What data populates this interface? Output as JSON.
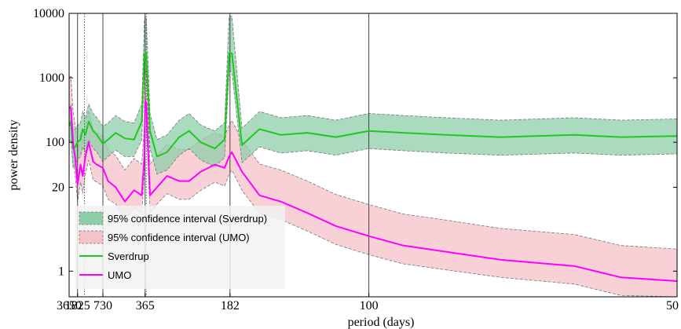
{
  "chart_data": {
    "type": "line",
    "title": "",
    "xlabel": "period (days)",
    "ylabel": "power density",
    "x_scale": "reciprocal",
    "y_scale": "log",
    "xlim": [
      3650,
      50
    ],
    "ylim": [
      0.4,
      10000
    ],
    "x_ticks": [
      3650,
      1825,
      730,
      365,
      182,
      100,
      50
    ],
    "x_tick_labels": [
      "3650",
      "1825",
      "730",
      "365",
      "182",
      "100",
      "50"
    ],
    "y_ticks": [
      1,
      20,
      100,
      1000,
      10000
    ],
    "y_tick_labels": [
      "1",
      "20",
      "100",
      "1000",
      "10000"
    ],
    "vertical_reference_lines": [
      1825,
      730,
      365,
      182,
      100
    ],
    "vertical_dotted_lines": [
      1300,
      360
    ],
    "grid": false,
    "legend_position": "bottom-left",
    "colors": {
      "sverdrup_line": "#1ec81e",
      "sverdrup_band": "#8fcfa8",
      "umo_line": "#ff00ff",
      "umo_band": "#f4c2c8",
      "band_edge": "#777777"
    },
    "series": [
      {
        "name": "Sverdrup",
        "kind": "line",
        "x": [
          3650,
          3000,
          2500,
          2100,
          1825,
          1550,
          1400,
          1250,
          1100,
          950,
          850,
          730,
          650,
          560,
          480,
          420,
          380,
          368,
          365,
          360,
          345,
          320,
          290,
          260,
          240,
          220,
          200,
          188,
          183,
          180,
          170,
          155,
          140,
          125,
          112,
          100,
          90,
          80,
          70,
          60,
          55,
          50
        ],
        "y": [
          180,
          210,
          80,
          85,
          100,
          110,
          160,
          130,
          210,
          150,
          130,
          95,
          110,
          140,
          115,
          110,
          210,
          2200,
          2500,
          2300,
          150,
          60,
          70,
          120,
          150,
          100,
          80,
          110,
          2400,
          2400,
          90,
          160,
          130,
          140,
          120,
          150,
          140,
          130,
          120,
          130,
          120,
          125
        ]
      },
      {
        "name": "UMO",
        "kind": "line",
        "x": [
          3650,
          3000,
          2500,
          2100,
          1825,
          1550,
          1400,
          1250,
          1100,
          950,
          850,
          730,
          650,
          560,
          480,
          420,
          380,
          368,
          365,
          360,
          345,
          320,
          290,
          260,
          240,
          220,
          200,
          188,
          183,
          180,
          170,
          155,
          140,
          125,
          112,
          100,
          90,
          80,
          70,
          60,
          55,
          50
        ],
        "y": [
          340,
          340,
          100,
          55,
          22,
          45,
          30,
          60,
          100,
          50,
          45,
          40,
          25,
          20,
          12,
          18,
          15,
          60,
          450,
          400,
          15,
          20,
          30,
          25,
          25,
          35,
          45,
          40,
          60,
          70,
          35,
          15,
          12,
          8,
          5,
          3.5,
          2.5,
          2,
          1.5,
          1.2,
          0.8,
          0.7
        ]
      },
      {
        "name": "95% confidence interval (Sverdrup)",
        "kind": "band",
        "x": [
          3650,
          3000,
          2500,
          2100,
          1825,
          1550,
          1400,
          1250,
          1100,
          950,
          850,
          730,
          650,
          560,
          480,
          420,
          380,
          368,
          365,
          360,
          345,
          320,
          290,
          260,
          240,
          220,
          200,
          188,
          183,
          180,
          170,
          155,
          140,
          125,
          112,
          100,
          90,
          80,
          70,
          60,
          55,
          50
        ],
        "lower": [
          100,
          110,
          40,
          45,
          55,
          60,
          85,
          70,
          110,
          80,
          70,
          50,
          60,
          75,
          60,
          60,
          110,
          1150,
          1300,
          1200,
          80,
          32,
          37,
          63,
          80,
          53,
          42,
          58,
          1250,
          1250,
          48,
          85,
          68,
          74,
          63,
          80,
          74,
          68,
          63,
          68,
          63,
          66
        ],
        "upper": [
          330,
          390,
          150,
          160,
          185,
          200,
          300,
          240,
          390,
          280,
          240,
          175,
          200,
          260,
          210,
          200,
          390,
          8000,
          9000,
          8500,
          280,
          110,
          130,
          220,
          280,
          185,
          150,
          200,
          9000,
          9000,
          165,
          300,
          240,
          260,
          220,
          280,
          260,
          240,
          220,
          240,
          220,
          230
        ]
      },
      {
        "name": "95% confidence interval (UMO)",
        "kind": "band",
        "x": [
          3650,
          3000,
          2500,
          2100,
          1825,
          1550,
          1400,
          1250,
          1100,
          950,
          850,
          730,
          650,
          560,
          480,
          420,
          380,
          368,
          365,
          360,
          345,
          320,
          290,
          260,
          240,
          220,
          200,
          188,
          183,
          180,
          170,
          155,
          140,
          125,
          112,
          100,
          90,
          80,
          70,
          60,
          55,
          50
        ],
        "lower": [
          180,
          180,
          53,
          29,
          12,
          24,
          16,
          32,
          53,
          26,
          24,
          21,
          13,
          11,
          6.3,
          9.5,
          7.9,
          32,
          240,
          210,
          7.9,
          11,
          16,
          13,
          13,
          18,
          24,
          21,
          32,
          37,
          18,
          7.9,
          6.3,
          4.2,
          2.6,
          1.8,
          1.3,
          1.05,
          0.8,
          0.63,
          0.42,
          0.4
        ],
        "upper": [
          1050,
          1050,
          310,
          170,
          68,
          140,
          93,
          185,
          310,
          155,
          140,
          124,
          77,
          62,
          37,
          56,
          46,
          185,
          1400,
          1240,
          46,
          62,
          93,
          77,
          77,
          108,
          140,
          124,
          185,
          217,
          108,
          46,
          37,
          25,
          15.5,
          10.8,
          7.7,
          6.2,
          4.6,
          3.7,
          2.5,
          2.2
        ]
      }
    ],
    "legend": [
      {
        "label": "95% confidence interval (Sverdrup)",
        "kind": "band",
        "series": "sverdrup"
      },
      {
        "label": "95% confidence interval (UMO)",
        "kind": "band",
        "series": "umo"
      },
      {
        "label": "Sverdrup",
        "kind": "line",
        "series": "sverdrup"
      },
      {
        "label": "UMO",
        "kind": "line",
        "series": "umo"
      }
    ]
  }
}
